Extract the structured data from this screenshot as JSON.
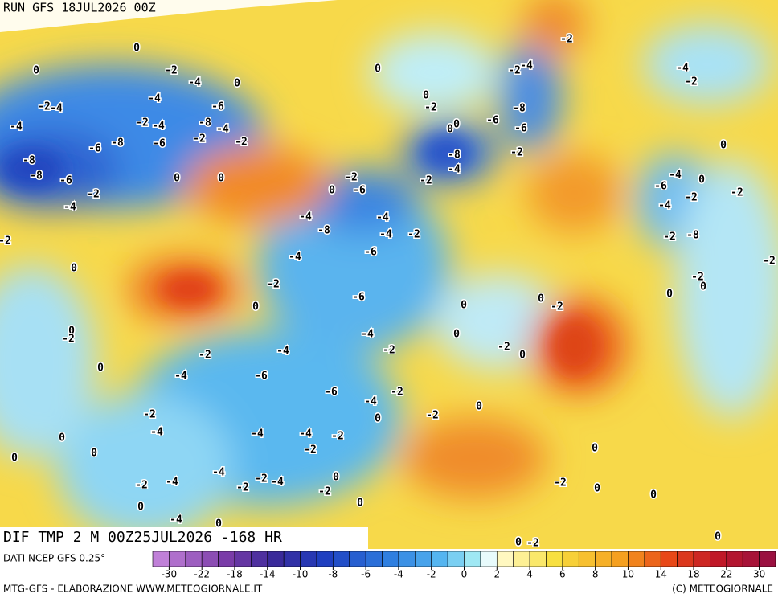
{
  "header": {
    "run": "RUN GFS 18JUL2026 00Z"
  },
  "map": {
    "title": "DIF TMP 2 M 00Z25JUL2026 -168 HR",
    "contour_labels": [
      0,
      0,
      -2,
      -4,
      0,
      -4,
      -2,
      -4,
      -6,
      -2,
      -4,
      -8,
      -4,
      -4,
      -6,
      -8,
      -6,
      -2,
      -2,
      -8,
      -8,
      -6,
      0,
      0,
      -2,
      -4,
      -2,
      0,
      -2,
      -6,
      0,
      -4,
      -8,
      -4,
      -4,
      -2,
      -6,
      -4,
      -2,
      0,
      -6,
      -4,
      -2,
      -4,
      -2,
      -6,
      -4,
      0,
      -6,
      -4,
      -2,
      0,
      -2,
      0,
      -2,
      -4,
      0,
      0,
      0,
      -4,
      -4,
      -2,
      -2,
      -4,
      -4,
      -2,
      -2,
      -2,
      -4,
      -2,
      0,
      0,
      0,
      -4,
      0,
      0,
      0,
      -2,
      0,
      0,
      -8,
      -4,
      -2,
      -6,
      -8,
      -6,
      -2,
      -2,
      -4,
      -2,
      -4,
      -2,
      0,
      -4,
      0,
      -6,
      -2,
      -4,
      -2,
      -8,
      -2,
      -2,
      0,
      0,
      -2,
      0,
      0,
      -2,
      0,
      -2,
      0,
      0,
      -2,
      0,
      0,
      0,
      0,
      -2,
      0,
      -2
    ]
  },
  "legend": {
    "source": "DATI NCEP GFS 0.25°",
    "ticks": [
      -30,
      -22,
      -18,
      -14,
      -10,
      -8,
      -6,
      -4,
      -2,
      0,
      2,
      4,
      6,
      8,
      10,
      14,
      18,
      22,
      30
    ]
  },
  "footer": {
    "left": "MTG-GFS - ELABORAZIONE WWW.METEOGIORNALE.IT",
    "right": "(C) METEOGIORNALE"
  }
}
